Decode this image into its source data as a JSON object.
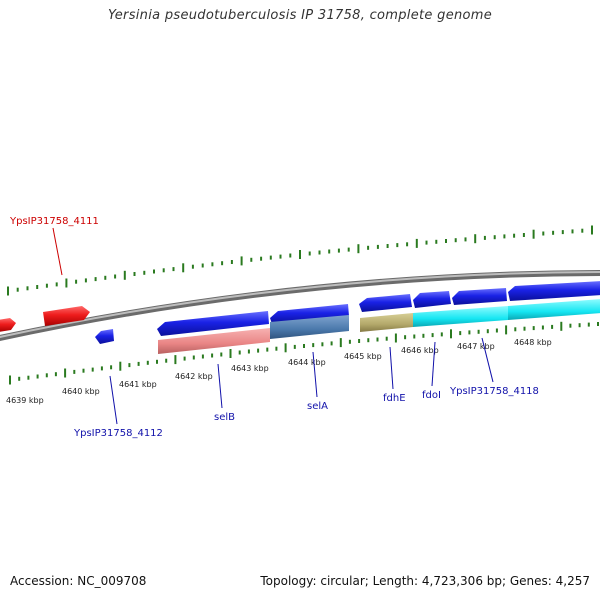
{
  "title": "Yersinia pseudotuberculosis IP 31758, complete genome",
  "footer": {
    "accession": "Accession: NC_009708",
    "topology": "Topology: circular; Length: 4,723,306 bp; Genes: 4,257"
  },
  "colors": {
    "forward_gene": "#e8151b",
    "reverse_gene": "#1a22e0",
    "tick": "#2a7a1f",
    "backbone": "#8a8a8a",
    "label_forward": "#cc0000",
    "label_reverse": "#1111aa"
  },
  "scale_labels": [
    "4639 kbp",
    "4640 kbp",
    "4641 kbp",
    "4642 kbp",
    "4643 kbp",
    "4644 kbp",
    "4645 kbp",
    "4646 kbp",
    "4647 kbp",
    "4648 kbp"
  ],
  "gene_labels": {
    "ypsip_4111": "YpsIP31758_4111",
    "ypsip_4112": "YpsIP31758_4112",
    "selB": "selB",
    "selA": "selA",
    "fdhE": "fdhE",
    "fdoI": "fdoI",
    "ypsip_4118": "YpsIP31758_4118"
  }
}
